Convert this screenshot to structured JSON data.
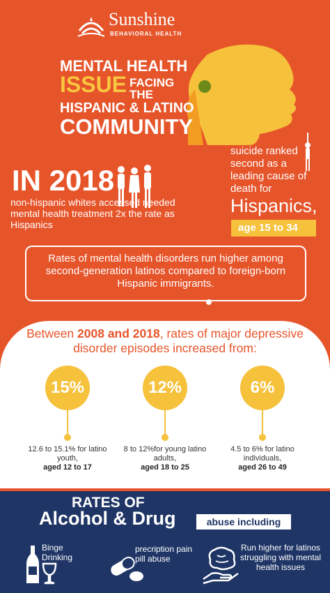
{
  "logo": {
    "brand": "Sunshine",
    "sub": "BEHAVIORAL HEALTH"
  },
  "title": {
    "line1": "MENTAL HEALTH",
    "line2": "ISSUE",
    "line2b": "FACING THE",
    "line3": "HISPANIC & LATINO",
    "line4": "COMMUNITY"
  },
  "in2018": {
    "heading": "IN 2018",
    "text": "non-hispanic whites accessed needed mental health treatment 2x the rate as Hispanics"
  },
  "suicide": {
    "text": "suicide ranked second as a leading cause of death for",
    "group": "Hispanics,",
    "age": "age 15 to 34"
  },
  "rates_box": {
    "text": "Rates of mental health disorders run higher among second-generation latinos compared to foreign-born Hispanic immigrants."
  },
  "between": {
    "pre": "Between ",
    "years": "2008 and 2018",
    "post": ", rates of major depressive disorder episodes increased from:"
  },
  "stats": [
    {
      "value": "15%",
      "desc": "12.6 to 15.1% for latino youth,",
      "age": "aged 12 to 17"
    },
    {
      "value": "12%",
      "desc": "8 to 12%for young latino adults,",
      "age": "aged 18 to 25"
    },
    {
      "value": "6%",
      "desc": "4.5 to 6% for latino individuals,",
      "age": "aged 26 to 49"
    }
  ],
  "bottom": {
    "rates_of": "RATES OF",
    "alcohol": "Alcohol & Drug",
    "badge": "abuse including",
    "items": [
      {
        "label": "Binge Drinking",
        "icon": "bottle-glass-icon"
      },
      {
        "label": "precription pain pill abuse",
        "icon": "pill-icon"
      },
      {
        "label": "Run higher for latinos struggling with mental health issues",
        "icon": "brain-hand-icon"
      }
    ]
  },
  "colors": {
    "orange": "#e6542a",
    "yellow": "#f6c13b",
    "navy": "#1f3566"
  }
}
